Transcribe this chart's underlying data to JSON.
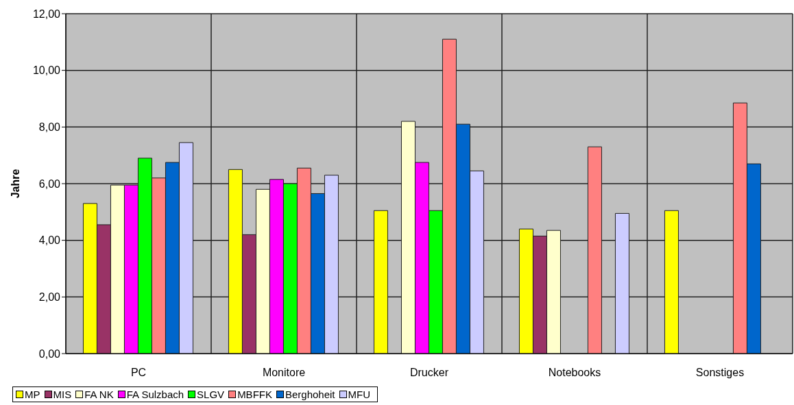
{
  "chart_data": {
    "type": "bar",
    "ylabel": "Jahre",
    "categories": [
      "PC",
      "Monitore",
      "Drucker",
      "Notebooks",
      "Sonstiges"
    ],
    "series": [
      {
        "name": "MP",
        "color": "#ffff00",
        "values": [
          5.3,
          6.5,
          5.05,
          4.4,
          5.05
        ]
      },
      {
        "name": "MIS",
        "color": "#993366",
        "values": [
          4.55,
          4.2,
          null,
          4.15,
          null
        ]
      },
      {
        "name": "FA NK",
        "color": "#ffffcc",
        "values": [
          5.95,
          5.8,
          8.2,
          4.35,
          null
        ]
      },
      {
        "name": "FA Sulzbach",
        "color": "#ff00ff",
        "values": [
          5.95,
          6.15,
          6.75,
          null,
          null
        ]
      },
      {
        "name": "SLGV",
        "color": "#00ff00",
        "values": [
          6.9,
          6.0,
          5.05,
          null,
          null
        ]
      },
      {
        "name": "MBFFK",
        "color": "#ff8080",
        "values": [
          6.2,
          6.55,
          11.1,
          7.3,
          8.85
        ]
      },
      {
        "name": "Berghoheit",
        "color": "#0066cc",
        "values": [
          6.75,
          5.65,
          8.1,
          null,
          6.7
        ]
      },
      {
        "name": "MFU",
        "color": "#ccccff",
        "values": [
          7.45,
          6.3,
          6.45,
          4.95,
          null
        ]
      }
    ],
    "ylim": [
      0,
      12
    ],
    "yticks": [
      {
        "value": 0,
        "label": "0,00"
      },
      {
        "value": 2,
        "label": "2,00"
      },
      {
        "value": 4,
        "label": "4,00"
      },
      {
        "value": 6,
        "label": "6,00"
      },
      {
        "value": 8,
        "label": "8,00"
      },
      {
        "value": 10,
        "label": "10,00"
      },
      {
        "value": 12,
        "label": "12,00"
      }
    ],
    "grid": true,
    "legend": "bottom"
  }
}
